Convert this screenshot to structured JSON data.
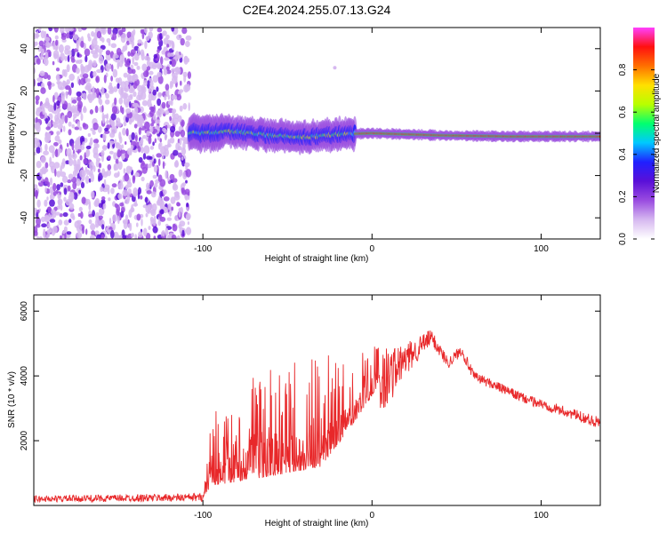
{
  "title": "C2E4.2024.255.07.13.G24",
  "chart_data": [
    {
      "type": "heatmap",
      "xlabel": "Height of straight line (km)",
      "ylabel": "Frequency (Hz)",
      "xlim": [
        -200,
        135
      ],
      "ylim": [
        -50,
        50
      ],
      "x_ticks": [
        -100,
        0,
        100
      ],
      "x_tick_labels": [
        "-100",
        "0",
        "100"
      ],
      "y_ticks": [
        -40,
        -20,
        0,
        20,
        40
      ],
      "y_tick_labels": [
        "-40",
        "-20",
        "0",
        "20",
        "40"
      ],
      "colorbar": {
        "label": "Normalized spectral amplitude",
        "range": [
          0,
          1
        ],
        "ticks": [
          0,
          0.2,
          0.4,
          0.6,
          0.8
        ],
        "tick_labels": [
          "0.0",
          "0.2",
          "0.4",
          "0.6",
          "0.8"
        ],
        "colors": [
          "#ffffff",
          "#d6b8f0",
          "#9a4ce0",
          "#5a10d8",
          "#2020ff",
          "#00c8ff",
          "#00ff70",
          "#b8ff00",
          "#ffe000",
          "#ff7000",
          "#ff1010",
          "#ff40ff"
        ]
      },
      "noise_region_x": [
        -200,
        -108
      ],
      "ridge": [
        {
          "x": -108,
          "freq": 0.0
        },
        {
          "x": -80,
          "freq": 0.8
        },
        {
          "x": -60,
          "freq": -1.0
        },
        {
          "x": -40,
          "freq": -2.0
        },
        {
          "x": -20,
          "freq": -0.5
        },
        {
          "x": 0,
          "freq": 0.0
        },
        {
          "x": 40,
          "freq": -1.0
        },
        {
          "x": 80,
          "freq": -1.5
        },
        {
          "x": 135,
          "freq": -1.5
        }
      ],
      "outlier_point": {
        "x": -22,
        "freq": 31
      },
      "grid": false
    },
    {
      "type": "line",
      "xlabel": "Height of straight line (km)",
      "ylabel": "SNR (10 * v/v)",
      "xlim": [
        -200,
        135
      ],
      "ylim": [
        0,
        6500
      ],
      "x_ticks": [
        -100,
        0,
        100
      ],
      "x_tick_labels": [
        "-100",
        "0",
        "100"
      ],
      "y_ticks": [
        2000,
        4000,
        6000
      ],
      "y_tick_labels": [
        "2000",
        "4000",
        "6000"
      ],
      "color": "#e8282a",
      "envelope": [
        {
          "x": -200,
          "base": 200,
          "spread": 200
        },
        {
          "x": -100,
          "base": 250,
          "spread": 250
        },
        {
          "x": -95,
          "base": 600,
          "spread": 2200
        },
        {
          "x": -60,
          "base": 900,
          "spread": 3600
        },
        {
          "x": -30,
          "base": 1200,
          "spread": 3600
        },
        {
          "x": -10,
          "base": 2600,
          "spread": 1800
        },
        {
          "x": 5,
          "base": 3800,
          "spread": 2200
        },
        {
          "x": 20,
          "base": 4500,
          "spread": 1000
        },
        {
          "x": 35,
          "base": 5200,
          "spread": 500
        },
        {
          "x": 45,
          "base": 4400,
          "spread": 350
        },
        {
          "x": 53,
          "base": 4800,
          "spread": 350
        },
        {
          "x": 60,
          "base": 4000,
          "spread": 300
        },
        {
          "x": 90,
          "base": 3300,
          "spread": 300
        },
        {
          "x": 135,
          "base": 2550,
          "spread": 350
        }
      ],
      "grid": false
    }
  ]
}
